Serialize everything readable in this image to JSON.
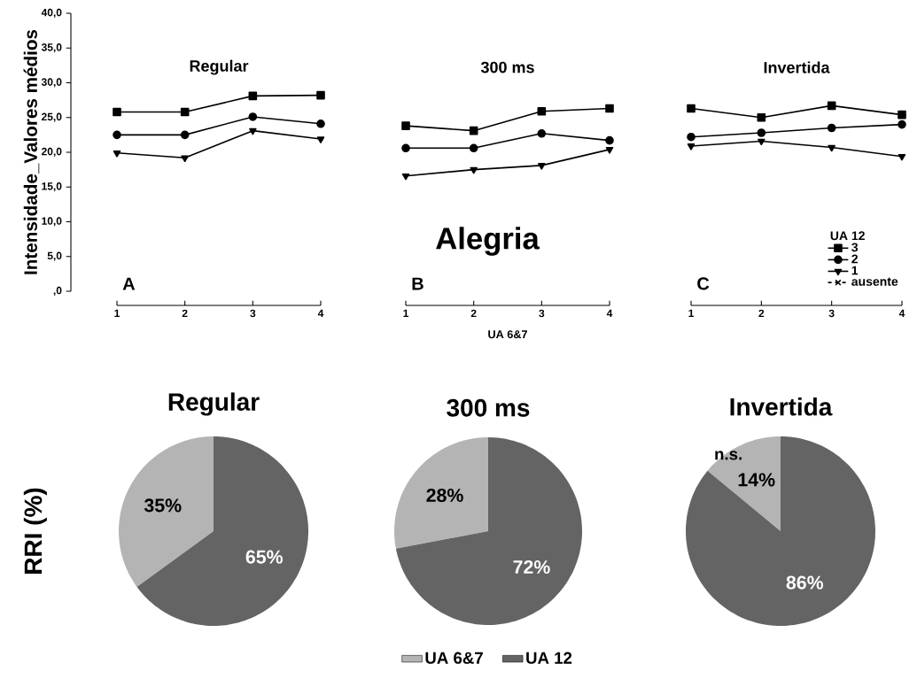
{
  "chart_data": [
    {
      "type": "line",
      "title": "Regular",
      "ylabel": "Intensidade_Valores médios",
      "x": [
        1,
        2,
        3,
        4
      ],
      "xlim": [
        1,
        4
      ],
      "xticks": [
        1,
        2,
        3,
        4
      ],
      "ylim": [
        0,
        40
      ],
      "yticks": [
        {
          "value": 0,
          "label": ",0"
        },
        {
          "value": 5,
          "label": "5,0"
        },
        {
          "value": 10,
          "label": "10,0"
        },
        {
          "value": 15,
          "label": "15,0"
        },
        {
          "value": 20,
          "label": "20,0"
        },
        {
          "value": 25,
          "label": "25,0"
        },
        {
          "value": 30,
          "label": "30,0"
        },
        {
          "value": 35,
          "label": "35,0"
        },
        {
          "value": 40,
          "label": "40,0"
        }
      ],
      "annotations": [
        "A"
      ],
      "series": [
        {
          "color": "#000000",
          "marker": "square",
          "values": [
            25.8,
            25.8,
            28.1,
            28.2
          ]
        },
        {
          "color": "#000000",
          "marker": "circle",
          "values": [
            22.5,
            22.5,
            25.1,
            24.1
          ]
        },
        {
          "color": "#000000",
          "marker": "triangle",
          "values": [
            19.9,
            19.2,
            23.1,
            21.9
          ]
        }
      ]
    },
    {
      "type": "line",
      "title": "300 ms",
      "xlabel": "UA 6&7",
      "x": [
        1,
        2,
        3,
        4
      ],
      "xlim": [
        1,
        4
      ],
      "xticks": [
        1,
        2,
        3,
        4
      ],
      "ylim": [
        0,
        40
      ],
      "tick_labels": "x",
      "annotations": [
        "B",
        "Alegria"
      ],
      "series": [
        {
          "color": "#000000",
          "marker": "square",
          "values": [
            23.8,
            23.1,
            25.9,
            26.3
          ]
        },
        {
          "color": "#000000",
          "marker": "circle",
          "values": [
            20.6,
            20.6,
            22.7,
            21.7
          ]
        },
        {
          "color": "#000000",
          "marker": "triangle",
          "values": [
            16.6,
            17.5,
            18.1,
            20.4
          ]
        }
      ]
    },
    {
      "type": "line",
      "title": "Invertida",
      "x": [
        1,
        2,
        3,
        4
      ],
      "xlim": [
        1,
        4
      ],
      "xticks": [
        1,
        2,
        3,
        4
      ],
      "ylim": [
        0,
        40
      ],
      "tick_labels": "x",
      "annotations": [
        "C"
      ],
      "legend": "bottom right",
      "legend_title": "UA 12",
      "series": [
        {
          "name": "3",
          "color": "#000000",
          "marker": "square",
          "values": [
            26.3,
            25.0,
            26.7,
            25.4
          ]
        },
        {
          "name": "2",
          "color": "#000000",
          "marker": "circle",
          "values": [
            22.2,
            22.8,
            23.5,
            24.0
          ]
        },
        {
          "name": "1",
          "color": "#000000",
          "marker": "triangle",
          "values": [
            20.9,
            21.6,
            20.7,
            19.4
          ]
        },
        {
          "name": "ausente",
          "color": "#000000",
          "marker": "cross",
          "line_style": "dashed",
          "values": [
            null,
            null,
            null,
            null
          ]
        }
      ]
    },
    {
      "type": "pie",
      "title": "Regular",
      "ylabel": "RRI (%)",
      "categories": [
        null,
        null
      ],
      "values": [
        35,
        65
      ],
      "colors": [
        "#b4b4b4",
        "#646464"
      ],
      "value_labels": [
        "35%",
        "65%"
      ]
    },
    {
      "type": "pie",
      "title": "300 ms",
      "categories": [
        "UA 6&7",
        "UA 12"
      ],
      "values": [
        28,
        72
      ],
      "colors": [
        "#b4b4b4",
        "#646464"
      ],
      "value_labels": [
        "28%",
        "72%"
      ],
      "legend": "bottom"
    },
    {
      "type": "pie",
      "title": "Invertida",
      "categories": [
        null,
        null
      ],
      "values": [
        14,
        86
      ],
      "colors": [
        "#b4b4b4",
        "#646464"
      ],
      "value_labels": [
        "14%",
        "86%"
      ],
      "annotations": [
        "n.s."
      ]
    }
  ]
}
